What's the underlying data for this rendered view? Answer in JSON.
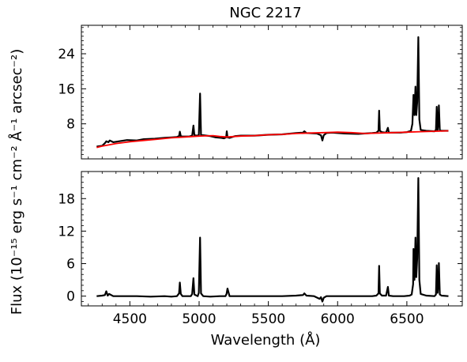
{
  "chart_data": [
    {
      "type": "line",
      "title": "NGC 2217",
      "xlabel": "",
      "ylabel": "Flux (10⁻¹⁵ erg s⁻¹ cm⁻² Å⁻¹ arcsec⁻²)",
      "xlim": [
        4150,
        6900
      ],
      "ylim": [
        0,
        30.5
      ],
      "xticks": [
        4500,
        5000,
        5500,
        6000,
        6500
      ],
      "yticks": [
        8,
        16,
        24
      ],
      "ytick_labels": [
        "8",
        "16",
        "24"
      ],
      "series": [
        {
          "color": "#000000",
          "x": [
            4260,
            4300,
            4320,
            4330,
            4345,
            4355,
            4380,
            4420,
            4480,
            4550,
            4600,
            4680,
            4750,
            4800,
            4840,
            4855,
            4861,
            4868,
            4880,
            4930,
            4950,
            4959,
            4966,
            4985,
            4998,
            5007,
            5014,
            5030,
            5080,
            5120,
            5160,
            5180,
            5195,
            5200,
            5205,
            5220,
            5260,
            5300,
            5400,
            5500,
            5600,
            5700,
            5750,
            5760,
            5775,
            5850,
            5880,
            5890,
            5900,
            5920,
            5960,
            6050,
            6150,
            6250,
            6280,
            6295,
            6300,
            6305,
            6320,
            6350,
            6363,
            6370,
            6400,
            6450,
            6500,
            6530,
            6540,
            6548,
            6555,
            6562,
            6568,
            6575,
            6583,
            6590,
            6600,
            6640,
            6700,
            6710,
            6716,
            6722,
            6728,
            6731,
            6738,
            6750,
            6800
          ],
          "y": [
            2.8,
            3.0,
            3.6,
            4.0,
            3.8,
            4.2,
            3.8,
            4.0,
            4.3,
            4.2,
            4.5,
            4.6,
            4.8,
            4.9,
            5.0,
            5.2,
            6.2,
            5.2,
            5.1,
            5.1,
            5.3,
            7.6,
            5.4,
            5.3,
            5.4,
            14.9,
            5.4,
            5.4,
            5.2,
            4.9,
            4.8,
            4.7,
            4.9,
            6.3,
            4.9,
            4.8,
            5.2,
            5.3,
            5.3,
            5.5,
            5.6,
            5.9,
            6.0,
            6.3,
            5.9,
            5.8,
            5.4,
            4.2,
            5.4,
            5.9,
            6.0,
            5.8,
            5.7,
            5.9,
            6.0,
            6.4,
            11.0,
            6.4,
            6.1,
            6.0,
            7.1,
            6.0,
            6.0,
            6.0,
            6.1,
            6.4,
            8.0,
            14.6,
            10.0,
            16.5,
            10.0,
            13.0,
            27.8,
            9.0,
            6.6,
            6.4,
            6.3,
            6.6,
            11.9,
            6.6,
            8.5,
            12.2,
            6.5,
            6.4,
            6.4
          ]
        },
        {
          "color": "#ff0000",
          "x": [
            4260,
            4300,
            4350,
            4400,
            4500,
            4600,
            4700,
            4800,
            4900,
            5000,
            5100,
            5150,
            5200,
            5300,
            5400,
            5500,
            5600,
            5700,
            5800,
            5900,
            6000,
            6100,
            6200,
            6300,
            6400,
            6500,
            6600,
            6700,
            6800
          ],
          "y": [
            2.6,
            2.9,
            3.2,
            3.5,
            3.9,
            4.2,
            4.5,
            4.8,
            5.0,
            5.2,
            5.3,
            5.1,
            5.0,
            5.2,
            5.3,
            5.5,
            5.6,
            5.8,
            5.9,
            6.0,
            6.1,
            6.0,
            5.8,
            5.9,
            6.0,
            6.1,
            6.2,
            6.3,
            6.4
          ]
        }
      ]
    },
    {
      "type": "line",
      "title": "",
      "xlabel": "Wavelength (Å)",
      "ylabel": "",
      "xlim": [
        4150,
        6900
      ],
      "ylim": [
        -1.8,
        23.0
      ],
      "xticks": [
        4500,
        5000,
        5500,
        6000,
        6500
      ],
      "yticks": [
        0,
        6,
        12,
        18
      ],
      "ytick_labels": [
        "0",
        "6",
        "12",
        "18"
      ],
      "series": [
        {
          "color": "#000000",
          "x": [
            4260,
            4300,
            4320,
            4330,
            4340,
            4350,
            4380,
            4450,
            4550,
            4650,
            4750,
            4800,
            4840,
            4855,
            4861,
            4868,
            4880,
            4940,
            4950,
            4959,
            4966,
            4990,
            4998,
            5007,
            5014,
            5030,
            5080,
            5150,
            5190,
            5198,
            5205,
            5220,
            5300,
            5400,
            5500,
            5600,
            5700,
            5750,
            5760,
            5775,
            5830,
            5870,
            5880,
            5890,
            5900,
            5920,
            5960,
            6050,
            6150,
            6250,
            6280,
            6295,
            6300,
            6305,
            6320,
            6350,
            6363,
            6370,
            6400,
            6480,
            6520,
            6535,
            6545,
            6548,
            6555,
            6562,
            6568,
            6575,
            6583,
            6590,
            6600,
            6640,
            6700,
            6710,
            6716,
            6722,
            6728,
            6731,
            6738,
            6750,
            6800
          ],
          "y": [
            0.0,
            0.1,
            0.2,
            0.9,
            0.1,
            0.4,
            0.0,
            0.0,
            0.0,
            -0.1,
            0.0,
            -0.1,
            0.0,
            0.5,
            2.5,
            0.4,
            0.0,
            0.0,
            0.4,
            3.3,
            0.3,
            0.0,
            0.6,
            10.8,
            0.5,
            0.0,
            -0.1,
            0.0,
            0.0,
            0.4,
            1.4,
            0.0,
            0.0,
            0.0,
            0.0,
            0.0,
            0.1,
            0.2,
            0.5,
            0.1,
            0.0,
            -0.5,
            -0.2,
            -1.0,
            -0.3,
            0.0,
            0.0,
            0.0,
            0.0,
            0.0,
            0.1,
            0.5,
            5.6,
            0.5,
            0.1,
            0.1,
            1.7,
            0.1,
            0.0,
            0.0,
            0.1,
            0.3,
            2.2,
            8.7,
            3.0,
            10.8,
            3.5,
            7.0,
            21.8,
            3.0,
            0.4,
            0.1,
            0.0,
            0.3,
            5.7,
            0.6,
            2.8,
            6.1,
            0.3,
            0.1,
            0.0
          ]
        }
      ]
    }
  ]
}
